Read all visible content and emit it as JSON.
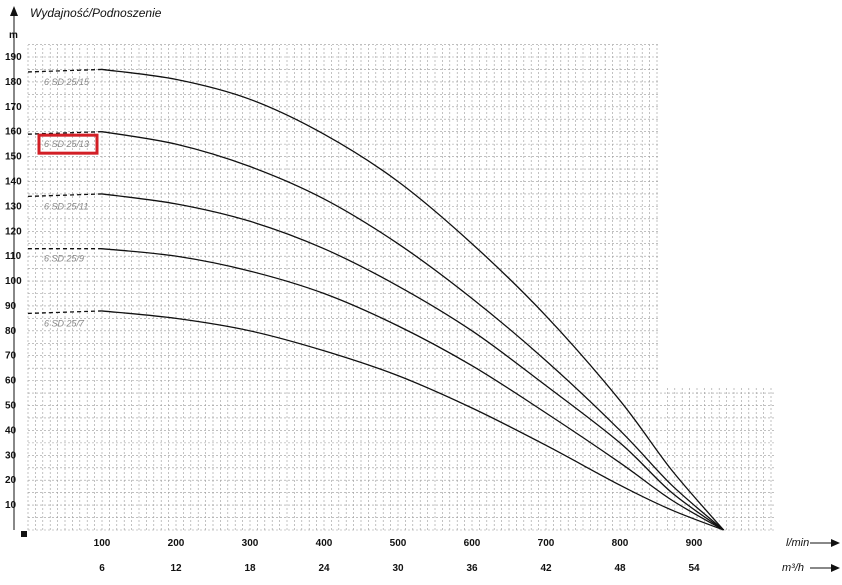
{
  "chart_data": {
    "type": "line",
    "title": "Wydajność/Podnoszenie",
    "ylabel": "m",
    "xlabel": "l/min",
    "x2label": "m³/h",
    "ylim": [
      0,
      190
    ],
    "xlim": [
      0,
      1000
    ],
    "y_ticks": [
      10,
      20,
      30,
      40,
      50,
      60,
      70,
      80,
      90,
      100,
      110,
      120,
      130,
      140,
      150,
      160,
      170,
      180,
      190
    ],
    "x_ticks": [
      100,
      200,
      300,
      400,
      500,
      600,
      700,
      800,
      900
    ],
    "x2_ticks": [
      6,
      12,
      18,
      24,
      30,
      36,
      42,
      48,
      54
    ],
    "grid": true,
    "highlighted_series": "6 SD 25/13",
    "series": [
      {
        "name": "6 SD 25/15",
        "dashed_until": 100,
        "x": [
          0,
          100,
          200,
          300,
          400,
          500,
          600,
          700,
          800,
          870,
          940
        ],
        "y": [
          184,
          185,
          181,
          173,
          159,
          140,
          115,
          86,
          52,
          24,
          0
        ]
      },
      {
        "name": "6 SD 25/13",
        "dashed_until": 100,
        "x": [
          0,
          100,
          200,
          300,
          400,
          500,
          600,
          700,
          800,
          870,
          940
        ],
        "y": [
          159,
          160,
          155,
          146,
          133,
          115,
          93,
          68,
          40,
          18,
          0
        ]
      },
      {
        "name": "6 SD 25/11",
        "dashed_until": 100,
        "x": [
          0,
          100,
          200,
          300,
          400,
          500,
          600,
          700,
          800,
          870,
          940
        ],
        "y": [
          134,
          135,
          131,
          124,
          113,
          98,
          80,
          58,
          35,
          15,
          0
        ]
      },
      {
        "name": "6 SD 25/9",
        "dashed_until": 100,
        "x": [
          0,
          100,
          200,
          300,
          400,
          500,
          600,
          700,
          800,
          870,
          940
        ],
        "y": [
          113,
          113,
          110,
          104,
          95,
          82,
          66,
          47,
          27,
          12,
          0
        ]
      },
      {
        "name": "6 SD 25/7",
        "dashed_until": 100,
        "x": [
          0,
          100,
          200,
          300,
          400,
          500,
          600,
          700,
          800,
          870,
          940
        ],
        "y": [
          87,
          88,
          85,
          80,
          72,
          62,
          49,
          34,
          18,
          8,
          0
        ]
      }
    ]
  }
}
